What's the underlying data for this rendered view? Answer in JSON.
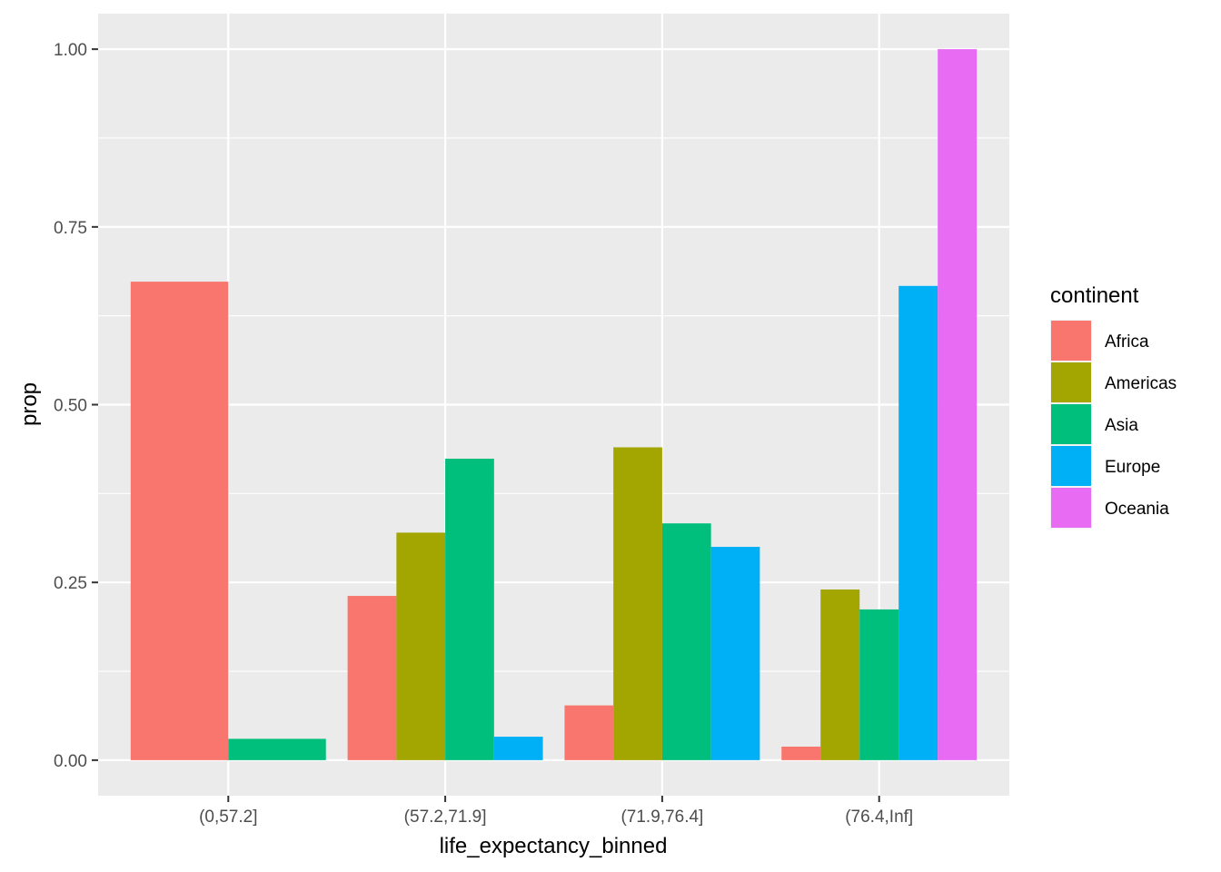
{
  "chart_data": {
    "type": "bar",
    "xlabel": "life_expectancy_binned",
    "ylabel": "prop",
    "categories": [
      "(0,57.2]",
      "(57.2,71.9]",
      "(71.9,76.4]",
      "(76.4,Inf]"
    ],
    "ylim": [
      -0.05,
      1.05
    ],
    "yticks": [
      0,
      0.25,
      0.5,
      0.75,
      1.0
    ],
    "ytick_labels": [
      "0.00",
      "0.25",
      "0.50",
      "0.75",
      "1.00"
    ],
    "grid": true,
    "legend": {
      "title": "continent",
      "position": "right"
    },
    "series": [
      {
        "name": "Africa",
        "color": "#F8766D",
        "values": [
          0.673,
          0.231,
          0.077,
          0.019
        ]
      },
      {
        "name": "Americas",
        "color": "#A3A500",
        "values": [
          null,
          0.32,
          0.44,
          0.24
        ]
      },
      {
        "name": "Asia",
        "color": "#00BF7D",
        "values": [
          0.03,
          0.424,
          0.333,
          0.212
        ]
      },
      {
        "name": "Europe",
        "color": "#00B0F6",
        "values": [
          null,
          0.033,
          0.3,
          0.667
        ]
      },
      {
        "name": "Oceania",
        "color": "#E76BF3",
        "values": [
          null,
          null,
          null,
          1.0
        ]
      }
    ]
  }
}
